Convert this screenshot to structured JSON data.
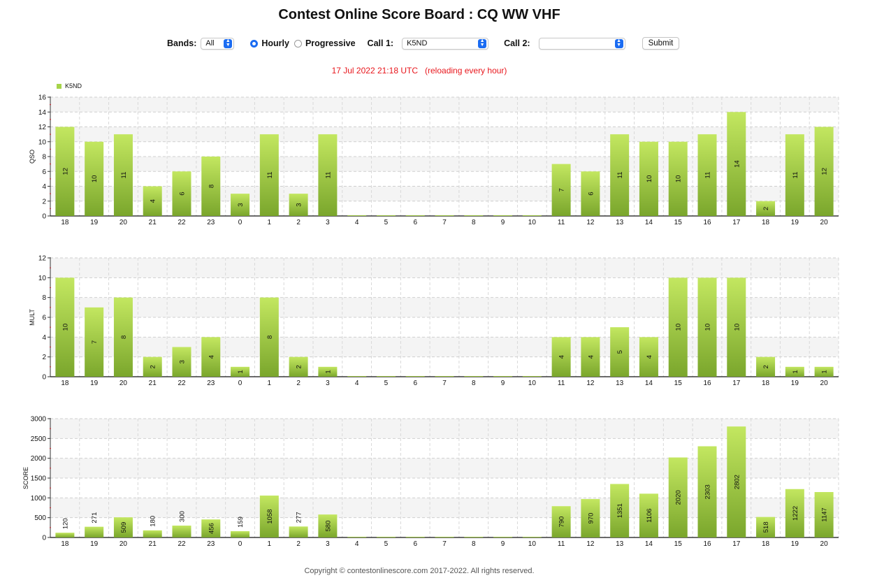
{
  "title": "Contest Online Score Board : CQ WW VHF",
  "controls": {
    "bands_label": "Bands:",
    "bands_value": "All",
    "hourly_label": "Hourly",
    "progressive_label": "Progressive",
    "mode_selected": "Hourly",
    "call1_label": "Call 1:",
    "call1_value": "K5ND",
    "call2_label": "Call 2:",
    "call2_value": "",
    "submit_label": "Submit"
  },
  "status_time": "17 Jul 2022 21:18 UTC",
  "status_reload": "(reloading every hour)",
  "legend": {
    "label": "K5ND",
    "color": "#a6d44a"
  },
  "colors": {
    "bar_top": "#c3e760",
    "bar_bottom": "#7aa62c",
    "status": "#e8161c",
    "axis_red": "#d9232f"
  },
  "footer": "Copyright © contestonlinescore.com 2017-2022. All rights reserved.",
  "chart_data": [
    {
      "type": "bar",
      "ylabel": "QSO",
      "ylim": [
        0,
        16
      ],
      "yticks": [
        0,
        2,
        4,
        6,
        8,
        10,
        12,
        14,
        16
      ],
      "categories": [
        "18",
        "19",
        "20",
        "21",
        "22",
        "23",
        "0",
        "1",
        "2",
        "3",
        "4",
        "5",
        "6",
        "7",
        "8",
        "9",
        "10",
        "11",
        "12",
        "13",
        "14",
        "15",
        "16",
        "17",
        "18",
        "19",
        "20"
      ],
      "series": [
        {
          "name": "K5ND",
          "values": [
            12,
            10,
            11,
            4,
            6,
            8,
            3,
            11,
            3,
            11,
            0,
            0,
            0,
            0,
            0,
            0,
            0,
            7,
            6,
            11,
            10,
            10,
            11,
            14,
            2,
            11,
            12
          ]
        }
      ],
      "grid": true,
      "legend": "top-left"
    },
    {
      "type": "bar",
      "ylabel": "MULT",
      "ylim": [
        0,
        12
      ],
      "yticks": [
        0,
        2,
        4,
        6,
        8,
        10,
        12
      ],
      "categories": [
        "18",
        "19",
        "20",
        "21",
        "22",
        "23",
        "0",
        "1",
        "2",
        "3",
        "4",
        "5",
        "6",
        "7",
        "8",
        "9",
        "10",
        "11",
        "12",
        "13",
        "14",
        "15",
        "16",
        "17",
        "18",
        "19",
        "20"
      ],
      "series": [
        {
          "name": "K5ND",
          "values": [
            10,
            7,
            8,
            2,
            3,
            4,
            1,
            8,
            2,
            1,
            0,
            0,
            0,
            0,
            0,
            0,
            0,
            4,
            4,
            5,
            4,
            10,
            10,
            10,
            2,
            1,
            1
          ]
        }
      ],
      "grid": true
    },
    {
      "type": "bar",
      "ylabel": "SCORE",
      "ylim": [
        0,
        3000
      ],
      "yticks": [
        0,
        500,
        1000,
        1500,
        2000,
        2500,
        3000
      ],
      "categories": [
        "18",
        "19",
        "20",
        "21",
        "22",
        "23",
        "0",
        "1",
        "2",
        "3",
        "4",
        "5",
        "6",
        "7",
        "8",
        "9",
        "10",
        "11",
        "12",
        "13",
        "14",
        "15",
        "16",
        "17",
        "18",
        "19",
        "20"
      ],
      "series": [
        {
          "name": "K5ND",
          "values": [
            120,
            271,
            509,
            180,
            300,
            456,
            159,
            1058,
            277,
            580,
            0,
            0,
            0,
            0,
            0,
            0,
            0,
            790,
            970,
            1351,
            1106,
            2020,
            2303,
            2802,
            518,
            1222,
            1147
          ]
        }
      ],
      "grid": true
    }
  ]
}
